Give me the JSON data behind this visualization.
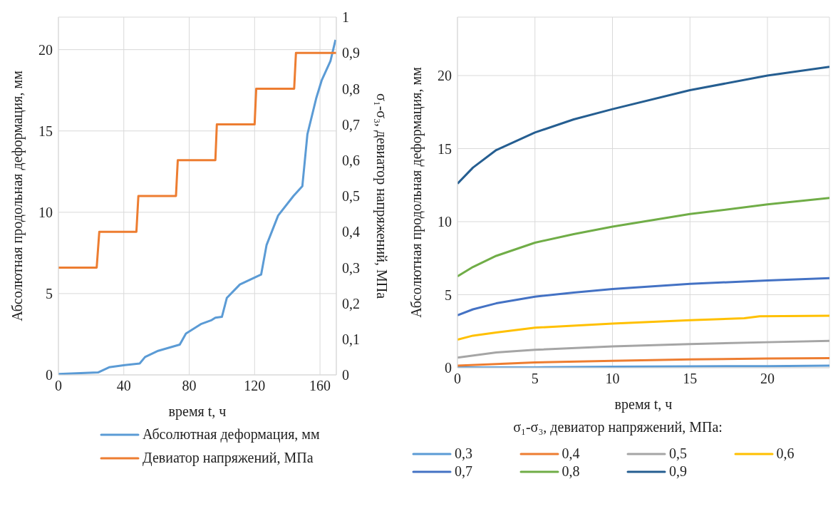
{
  "chart_data": [
    {
      "type": "line",
      "xlabel": "время t, ч",
      "ylabel": "Абсолютная  продольная деформация, мм",
      "y2label": "σ₁-σ₃, девиатор напряжений, МПа",
      "xlim": [
        0,
        170
      ],
      "xticks": [
        0,
        40,
        80,
        120,
        160
      ],
      "ylim": [
        0,
        22
      ],
      "yticks": [
        0,
        5,
        10,
        15,
        20
      ],
      "y2lim": [
        0,
        1
      ],
      "y2ticks": [
        0,
        {
          "value": 0.1,
          "label": "0,1"
        },
        {
          "value": 0.2,
          "label": "0,2"
        },
        {
          "value": 0.3,
          "label": "0,3"
        },
        {
          "value": 0.4,
          "label": "0,4"
        },
        {
          "value": 0.5,
          "label": "0,5"
        },
        {
          "value": 0.6,
          "label": "0,6"
        },
        {
          "value": 0.7,
          "label": "0,7"
        },
        {
          "value": 0.8,
          "label": "0,8"
        },
        {
          "value": 0.9,
          "label": "0,9"
        },
        1
      ],
      "grid": true,
      "legend": "bottom",
      "marker": "none",
      "series": [
        {
          "name": "Абсолютная деформация, мм",
          "color": "#5b9bd5",
          "x": [
            0,
            24.2,
            31,
            40.6,
            49.7,
            53,
            61,
            74.2,
            78,
            87.5,
            93.75,
            96,
            100,
            103,
            111,
            124,
            127.3,
            134.4,
            143.75,
            149.2,
            152.3,
            157.8,
            161,
            166.4,
            169.5
          ],
          "values": [
            0.05,
            0.15,
            0.47,
            0.6,
            0.7,
            1.1,
            1.48,
            1.86,
            2.54,
            3.14,
            3.37,
            3.52,
            3.57,
            4.73,
            5.56,
            6.17,
            7.98,
            9.8,
            11,
            11.6,
            14.8,
            17.05,
            18.1,
            19.3,
            20.6
          ]
        },
        {
          "name": "Девиатор напряжений, МПа",
          "color": "#ed7d31",
          "axis": "y2",
          "x": [
            0,
            23.4,
            25,
            47.7,
            48.9,
            71.9,
            73,
            96,
            96.9,
            120,
            121,
            144.2,
            145.3,
            170
          ],
          "values": [
            0.3,
            0.3,
            0.4,
            0.4,
            0.5,
            0.5,
            0.6,
            0.6,
            0.7,
            0.7,
            0.8,
            0.8,
            0.9,
            0.9
          ]
        }
      ]
    },
    {
      "type": "line",
      "xlabel": "время t, ч",
      "ylabel": "Абсолютная  продольная деформация, мм",
      "legend_title": "σ₁-σ₃, девиатор напряжений, МПа:",
      "xlim": [
        0,
        24
      ],
      "xticks": [
        0,
        5,
        10,
        15,
        20
      ],
      "ylim": [
        0,
        24
      ],
      "yticks": [
        0,
        5,
        10,
        15,
        20
      ],
      "grid": true,
      "legend": "bottom",
      "marker": "none",
      "series": [
        {
          "name": "0,3",
          "color": "#5b9bd5",
          "x": [
            0,
            5,
            10,
            15,
            20,
            24
          ],
          "values": [
            0.02,
            0.03,
            0.07,
            0.1,
            0.11,
            0.15
          ]
        },
        {
          "name": "0,4",
          "color": "#ed7d31",
          "x": [
            0,
            5,
            10,
            15,
            20,
            24
          ],
          "values": [
            0.15,
            0.36,
            0.48,
            0.57,
            0.64,
            0.66
          ]
        },
        {
          "name": "0,5",
          "color": "#a5a5a5",
          "x": [
            0,
            2.5,
            5,
            10,
            15,
            20,
            24
          ],
          "values": [
            0.69,
            1.05,
            1.23,
            1.46,
            1.62,
            1.75,
            1.84
          ]
        },
        {
          "name": "0,6",
          "color": "#ffc000",
          "x": [
            0,
            1,
            2.5,
            5,
            10,
            15,
            18.5,
            19.5,
            24
          ],
          "values": [
            1.92,
            2.2,
            2.41,
            2.74,
            3.03,
            3.26,
            3.39,
            3.52,
            3.56
          ]
        },
        {
          "name": "0,7",
          "color": "#4472c4",
          "x": [
            0,
            1,
            2.5,
            5,
            7.5,
            10,
            15,
            20,
            24
          ],
          "values": [
            3.59,
            4.0,
            4.41,
            4.87,
            5.15,
            5.39,
            5.74,
            5.98,
            6.13
          ]
        },
        {
          "name": "0,8",
          "color": "#70ad47",
          "x": [
            0,
            1,
            2.5,
            5,
            7.5,
            10,
            15,
            20,
            24
          ],
          "values": [
            6.26,
            6.9,
            7.66,
            8.56,
            9.15,
            9.66,
            10.52,
            11.18,
            11.62
          ]
        },
        {
          "name": "0,9",
          "color": "#255e91",
          "x": [
            0,
            1,
            2.5,
            5,
            7.5,
            10,
            15,
            20,
            24
          ],
          "values": [
            12.6,
            13.7,
            14.9,
            16.1,
            17,
            17.7,
            19,
            20,
            20.6
          ]
        }
      ]
    }
  ]
}
